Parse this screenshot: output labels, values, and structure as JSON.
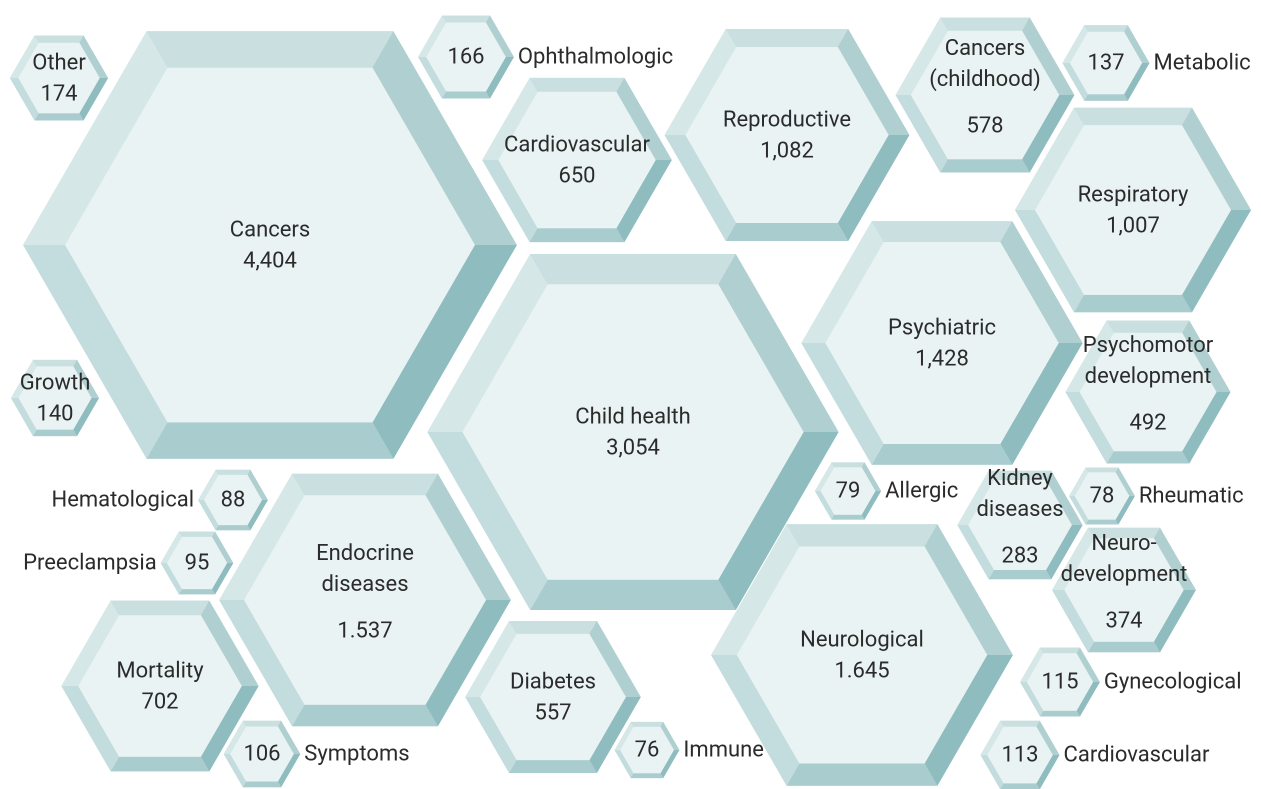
{
  "chart_data": {
    "type": "hexbubble",
    "categories": [
      "Cancers",
      "Child health",
      "Neurological",
      "Endocrine\ndiseases",
      "Psychiatric",
      "Reproductive",
      "Respiratory",
      "Mortality",
      "Cardiovascular",
      "Cancers\n(childhood)",
      "Diabetes",
      "Psychomotor\ndevelopment",
      "Neuro-\ndevelopment",
      "Kidney\ndiseases",
      "Other",
      "Ophthalmologic",
      "Growth",
      "Metabolic",
      "Gynecological",
      "Cardiovascular",
      "Symptoms",
      "Preeclampsia",
      "Hematological",
      "Allergic",
      "Rheumatic",
      "Immune"
    ],
    "values": [
      4404,
      3054,
      1645,
      1537,
      1428,
      1082,
      1007,
      702,
      650,
      578,
      557,
      492,
      374,
      283,
      174,
      166,
      140,
      137,
      115,
      113,
      106,
      95,
      88,
      79,
      78,
      76
    ],
    "value_labels": [
      "4,404",
      "3,054",
      "1.645",
      "1.537",
      "1,428",
      "1,082",
      "1,007",
      "702",
      "650",
      "578",
      "557",
      "492",
      "374",
      "283",
      "174",
      "166",
      "140",
      "137",
      "115",
      "113",
      "106",
      "95",
      "88",
      "79",
      "78",
      "76"
    ]
  }
}
